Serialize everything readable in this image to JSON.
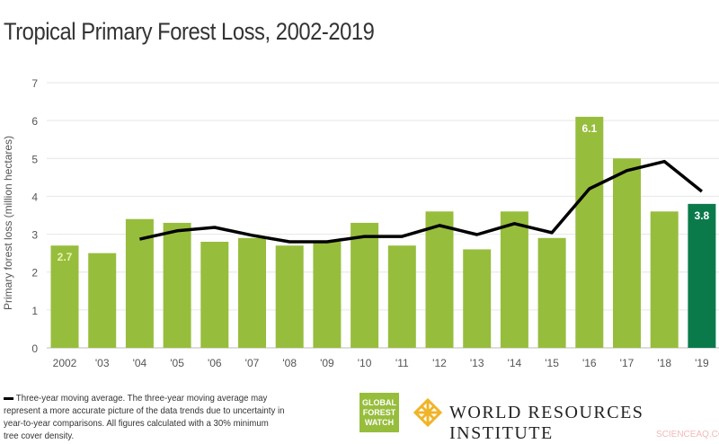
{
  "chart_data": {
    "type": "bar",
    "title": "Tropical Primary Forest Loss, 2002-2019",
    "xlabel": "",
    "ylabel": "Primary forest loss (million hectares)",
    "ylim": [
      0,
      7
    ],
    "yticks": [
      "0",
      "1",
      "2",
      "3",
      "4",
      "5",
      "6",
      "7"
    ],
    "grid": true,
    "categories": [
      "2002",
      "'03",
      "'04",
      "'05",
      "'06",
      "'07",
      "'08",
      "'09",
      "'10",
      "'11",
      "'12",
      "'13",
      "'14",
      "'15",
      "'16",
      "'17",
      "'18",
      "'19"
    ],
    "series": [
      {
        "type": "bar",
        "values": [
          2.7,
          2.5,
          3.4,
          3.3,
          2.8,
          2.9,
          2.7,
          2.8,
          3.3,
          2.7,
          3.6,
          2.6,
          3.6,
          2.9,
          6.1,
          5.0,
          3.6,
          3.8
        ]
      },
      {
        "name": "Three-year moving average",
        "type": "line",
        "values": [
          null,
          null,
          2.87,
          3.09,
          3.18,
          2.97,
          2.8,
          2.8,
          2.94,
          2.94,
          3.23,
          2.99,
          3.28,
          3.04,
          4.2,
          4.68,
          4.92,
          4.13
        ]
      }
    ],
    "data_labels": {
      "0": "2.7",
      "14": "6.1",
      "17": "3.8"
    },
    "colors": {
      "bar": "#97bd3d",
      "highlight": "#0b7a4b",
      "line": "#000000",
      "grid": "#e6e6e6"
    }
  },
  "note": {
    "legend": "Three-year moving average.",
    "text": "The three-year moving average may represent a more accurate picture of the data trends due to uncertainty in year-to-year comparisons. All figures calculated with a 30% minimum tree cover density."
  },
  "logos": {
    "gfw": [
      "GLOBAL",
      "FOREST",
      "WATCH"
    ],
    "wri": "WORLD RESOURCES INSTITUTE"
  },
  "watermark": "SCIENCEAQ.COM"
}
